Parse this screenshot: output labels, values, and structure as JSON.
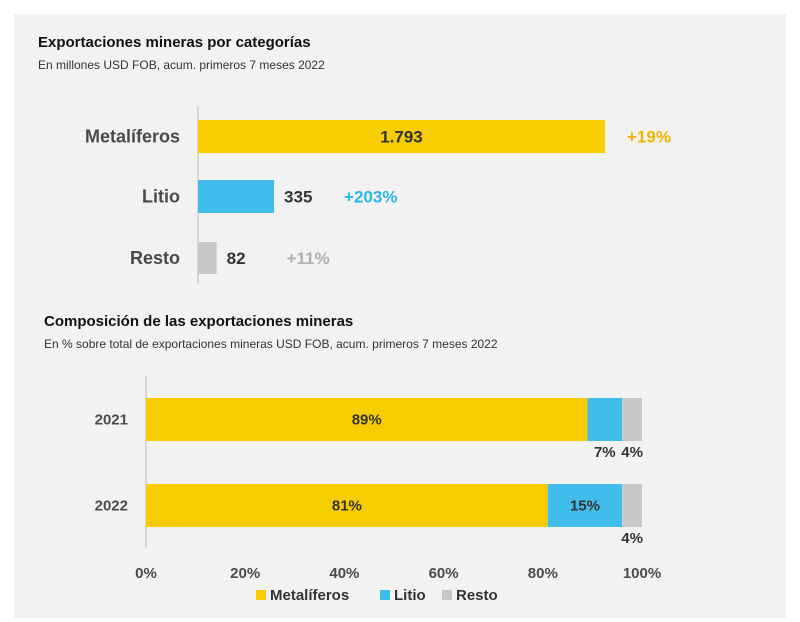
{
  "chart_data": [
    {
      "type": "bar",
      "orientation": "horizontal",
      "title": "Exportaciones mineras por categorías",
      "subtitle": "En millones USD FOB, acum. primeros 7 meses 2022",
      "categories": [
        "Metalíferos",
        "Litio",
        "Resto"
      ],
      "values": [
        1793,
        335,
        82
      ],
      "value_labels": [
        "1.793",
        "335",
        "82"
      ],
      "growth_labels": [
        "+19%",
        "+203%",
        "+11%"
      ],
      "colors": [
        "#f7cd00",
        "#41bdec",
        "#c8c8c8"
      ],
      "growth_colors": [
        "#f0b400",
        "#29b6ea",
        "#b0b0b0"
      ]
    },
    {
      "type": "bar",
      "orientation": "horizontal",
      "stacked": true,
      "title": "Composición de las exportaciones mineras",
      "subtitle": "En % sobre total de exportaciones mineras USD FOB, acum. primeros 7 meses 2022",
      "categories": [
        "2021",
        "2022"
      ],
      "series": [
        {
          "name": "Metalíferos",
          "values": [
            89,
            81
          ],
          "labels": [
            "89%",
            "81%"
          ],
          "color": "#f7cd00"
        },
        {
          "name": "Litio",
          "values": [
            7,
            15
          ],
          "labels": [
            "7%",
            "15%"
          ],
          "color": "#41bdec"
        },
        {
          "name": "Resto",
          "values": [
            4,
            4
          ],
          "labels": [
            "4%",
            "4%"
          ],
          "color": "#c8c8c8"
        }
      ],
      "xlim": [
        0,
        100
      ],
      "xticks": [
        0,
        20,
        40,
        60,
        80,
        100
      ],
      "xtick_labels": [
        "0%",
        "20%",
        "40%",
        "60%",
        "80%",
        "100%"
      ],
      "legend_position": "bottom-center"
    }
  ]
}
